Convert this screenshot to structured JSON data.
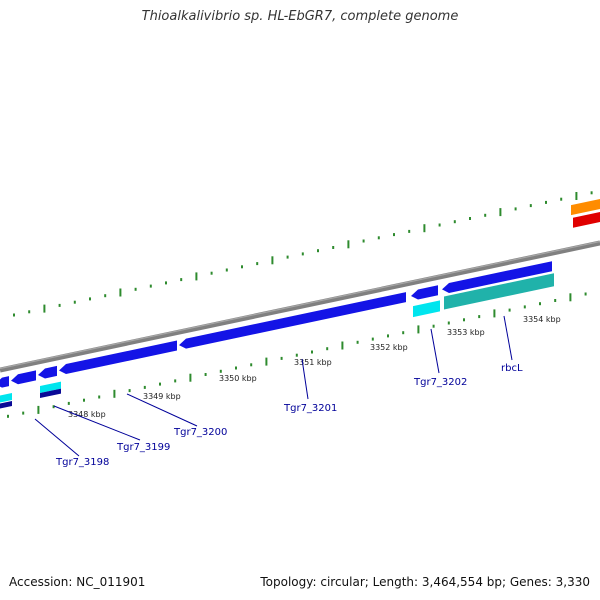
{
  "title": "Thioalkalivibrio sp. HL-EbGR7, complete genome",
  "footer": {
    "accession": "Accession: NC_011901",
    "summary": "Topology: circular; Length: 3,464,554 bp; Genes: 3,330"
  },
  "map": {
    "colors": {
      "background": "#ffffff",
      "backbone": "#808080",
      "tick_dots": "#2e8b2e",
      "gene_forward": "#1414e6",
      "gene_reverse": "#0a0a96",
      "rna": "#00e5ee",
      "rna_alt": "#20b2aa",
      "other_feature": "#ff8c00",
      "other_feature_2": "#e00000",
      "gene_label": "#000099",
      "tick_label": "#222222"
    },
    "position_labels": [
      "3348 kbp",
      "3349 kbp",
      "3350 kbp",
      "3351 kbp",
      "3352 kbp",
      "3353 kbp",
      "3354 kbp"
    ],
    "gene_labels": [
      "Tgr7_3198",
      "Tgr7_3199",
      "Tgr7_3200",
      "Tgr7_3201",
      "Tgr7_3202",
      "rbcL"
    ]
  }
}
